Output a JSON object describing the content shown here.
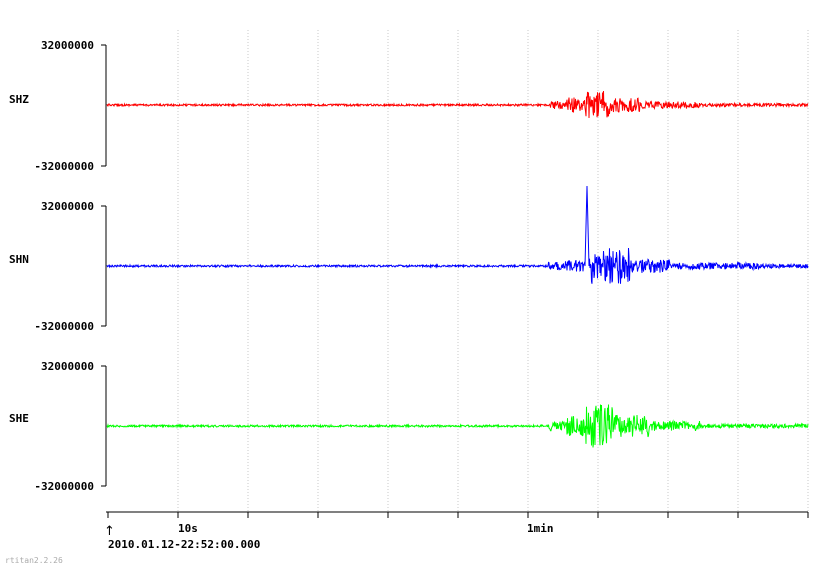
{
  "chart_data": {
    "type": "line",
    "start_time": "2010.01.12-22:52:00.000",
    "x_tick_labels": [
      "10s",
      "1min"
    ],
    "channels": [
      {
        "name": "SHZ",
        "color": "#ff0000",
        "ymax_label": "32000000",
        "ymin_label": "-32000000"
      },
      {
        "name": "SHN",
        "color": "#0000ff",
        "ymax_label": "32000000",
        "ymin_label": "-32000000"
      },
      {
        "name": "SHE",
        "color": "#00ff00",
        "ymax_label": "32000000",
        "ymin_label": "-32000000"
      }
    ],
    "grid": true
  },
  "watermark": "rtitan2.2.26"
}
